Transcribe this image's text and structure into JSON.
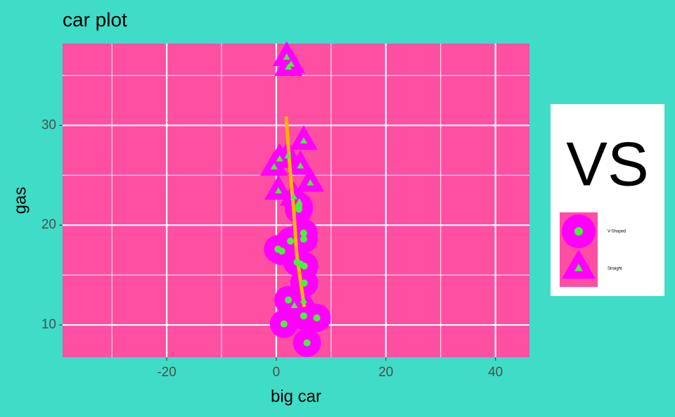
{
  "chart_data": {
    "type": "scatter",
    "title": "car plot",
    "x_label": "big car",
    "y_label": "gas",
    "xlim": [
      -39,
      46.2
    ],
    "ylim": [
      6.76,
      38.2
    ],
    "xticks": [
      -20,
      0,
      20,
      40
    ],
    "yticks": [
      10,
      20,
      30
    ],
    "xminor": [
      -30,
      -10,
      10,
      30
    ],
    "yminor": [
      15,
      25,
      35
    ],
    "grid": true,
    "background": "#3fdcc8",
    "panel_color": "#ff4fa3",
    "halo_color": "#ff00ff",
    "legend_title": "VS",
    "legend_position": "right",
    "series": [
      {
        "name": "V-Shaped",
        "shape": "circle",
        "color": "#4cf03c",
        "x": [
          5.0,
          5.0,
          2.6,
          0.3,
          1.0,
          3.8,
          4.4,
          5.1,
          5.1,
          2.2,
          5.0,
          7.4,
          1.4,
          5.6,
          4.1,
          4.1
        ],
        "values": [
          19.2,
          18.6,
          18.4,
          17.6,
          17.4,
          16.3,
          16.1,
          15.9,
          14.2,
          12.5,
          10.9,
          10.7,
          10.1,
          8.2,
          21.9,
          21.6
        ]
      },
      {
        "name": "Straight",
        "shape": "triangle",
        "color": "#4cf03c",
        "x": [
          1.9,
          2.7,
          2.2,
          5.0,
          2.1,
          0.6,
          -0.4,
          4.4,
          6.2,
          0.4,
          3.2,
          4.2,
          3.3,
          5.0
        ],
        "values": [
          36.8,
          36.1,
          35.8,
          28.4,
          26.9,
          26.6,
          25.8,
          25.9,
          24.2,
          23.4,
          22.8,
          22.3,
          11.9,
          12.4
        ]
      }
    ],
    "smooth": {
      "color": "#ffb400",
      "x": [
        1.8,
        2.4,
        3.2,
        3.7,
        5.1
      ],
      "values": [
        30.9,
        26.3,
        21.4,
        17.2,
        11.8
      ]
    }
  }
}
